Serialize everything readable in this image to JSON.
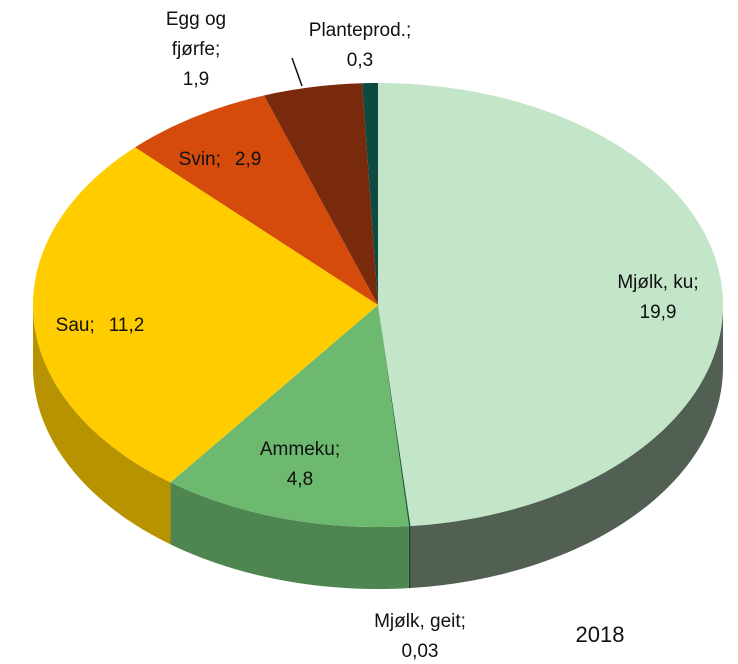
{
  "chart_data": {
    "type": "pie3d",
    "categories": [
      "Mjølk, ku",
      "Mjølk, geit",
      "Ammeku",
      "Sau",
      "Svin",
      "Egg og fjørfe",
      "Planteprod."
    ],
    "values": [
      19.9,
      0.03,
      4.8,
      11.2,
      2.9,
      1.9,
      0.3
    ],
    "value_labels": [
      "19,9",
      "0,03",
      "4,8",
      "11,2",
      "2,9",
      "1,9",
      "0,3"
    ],
    "label_separator": ";",
    "colors": [
      "#c3e5c8",
      "#1e5a3a",
      "#6cb96f",
      "#ffcc00",
      "#d44b0c",
      "#7a2a0c",
      "#0d4a40"
    ],
    "annotation": "2018"
  }
}
